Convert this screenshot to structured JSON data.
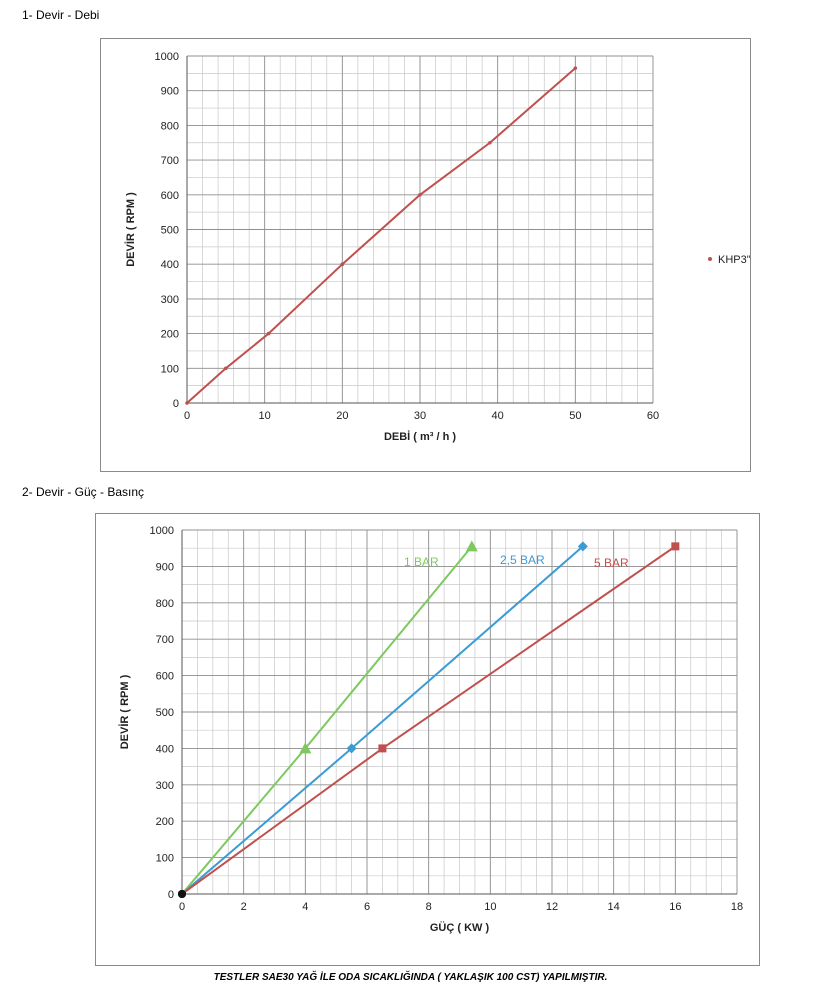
{
  "section1": {
    "title": "1- Devir - Debi"
  },
  "section2": {
    "title": "2- Devir - Güç - Basınç"
  },
  "footer": {
    "text": "TESTLER SAE30 YAĞ İLE ODA SICAKLIĞINDA ( YAKLAŞIK 100 CST) YAPILMIŞTIR."
  },
  "chart_data": [
    {
      "type": "line",
      "xlabel": "DEBİ ( m³ / h )",
      "ylabel": "DEVİR ( RPM )",
      "xlim": [
        0,
        60
      ],
      "ylim": [
        0,
        1000
      ],
      "xticks": [
        0,
        10,
        20,
        30,
        40,
        50,
        60
      ],
      "yticks": [
        0,
        100,
        200,
        300,
        400,
        500,
        600,
        700,
        800,
        900,
        1000
      ],
      "grid": true,
      "legend": "right",
      "series": [
        {
          "name": "KHP3\"",
          "color": "#c0504d",
          "marker": "dot",
          "x": [
            0,
            5,
            10.5,
            20,
            30,
            39,
            50
          ],
          "y": [
            0,
            100,
            200,
            400,
            600,
            750,
            965
          ]
        }
      ]
    },
    {
      "type": "line",
      "xlabel": "GÜÇ ( KW )",
      "ylabel": "DEVİR ( RPM )",
      "xlim": [
        0,
        18
      ],
      "ylim": [
        0,
        1000
      ],
      "xticks": [
        0,
        2,
        4,
        6,
        8,
        10,
        12,
        14,
        16,
        18
      ],
      "yticks": [
        0,
        100,
        200,
        300,
        400,
        500,
        600,
        700,
        800,
        900,
        1000
      ],
      "grid": true,
      "series": [
        {
          "name": "1 BAR",
          "color": "#7ec95f",
          "marker": "triangle",
          "x": [
            0,
            4,
            9.4
          ],
          "y": [
            0,
            400,
            955
          ]
        },
        {
          "name": "2,5 BAR",
          "color": "#3a9bd5",
          "marker": "diamond",
          "x": [
            0,
            5.5,
            13
          ],
          "y": [
            0,
            400,
            955
          ]
        },
        {
          "name": "5 BAR",
          "color": "#c0504d",
          "marker": "square",
          "x": [
            0,
            6.5,
            16
          ],
          "y": [
            0,
            400,
            955
          ]
        }
      ]
    }
  ]
}
